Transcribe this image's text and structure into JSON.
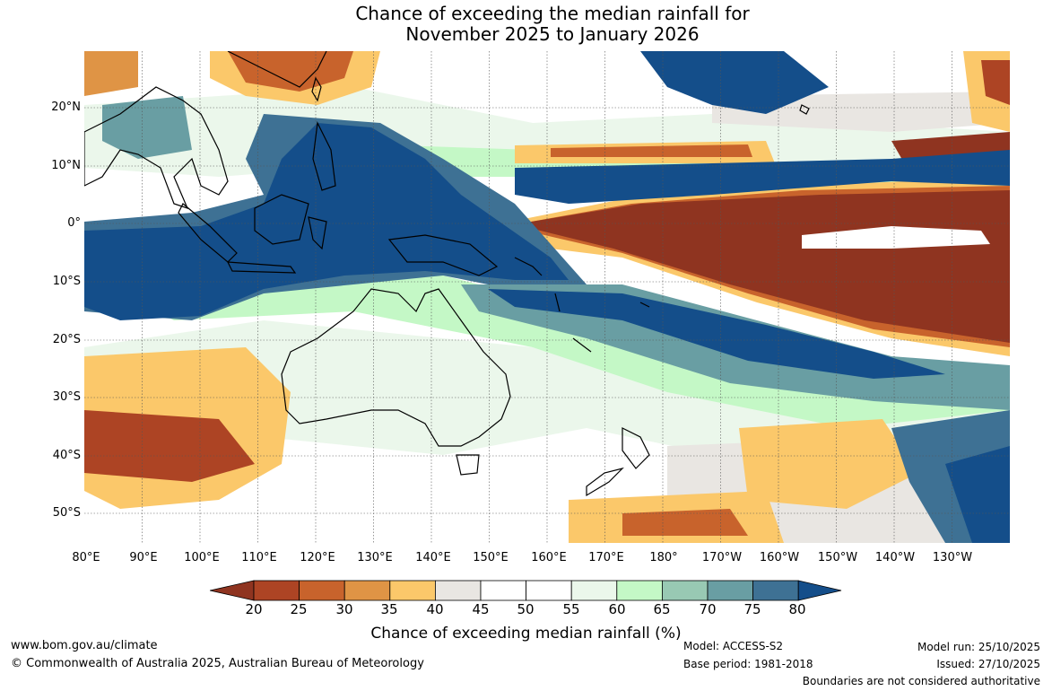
{
  "title": {
    "line1": "Chance of exceeding the median rainfall for",
    "line2": "November 2025 to January 2026"
  },
  "map": {
    "lat_labels": [
      "20°N",
      "10°N",
      "0°",
      "10°S",
      "20°S",
      "30°S",
      "40°S",
      "50°S"
    ],
    "lon_labels": [
      "80°E",
      "90°E",
      "100°E",
      "110°E",
      "120°E",
      "130°E",
      "140°E",
      "150°E",
      "160°E",
      "170°E",
      "180°",
      "170°W",
      "160°W",
      "150°W",
      "140°W",
      "130°W"
    ]
  },
  "colorbar": {
    "ticks": [
      "20",
      "25",
      "30",
      "35",
      "40",
      "45",
      "50",
      "55",
      "60",
      "65",
      "70",
      "75",
      "80"
    ],
    "colors": [
      "#8f3420",
      "#ad4424",
      "#c8632c",
      "#df9445",
      "#fbc86a",
      "#e9e6e2",
      "#ffffff",
      "#ffffff",
      "#ebf7eb",
      "#c4f8c6",
      "#98c9b3",
      "#699ea3",
      "#3e7194",
      "#144e8a"
    ],
    "title": "Chance of exceeding median rainfall (%)"
  },
  "footer": {
    "website": "www.bom.gov.au/climate",
    "copyright": "© Commonwealth of Australia 2025, Australian Bureau of Meteorology",
    "model": "Model: ACCESS-S2",
    "base_period": "Base period: 1981-2018",
    "model_run": "Model run: 25/10/2025",
    "issued": "Issued: 27/10/2025",
    "disclaimer": "Boundaries are not considered authoritative"
  }
}
